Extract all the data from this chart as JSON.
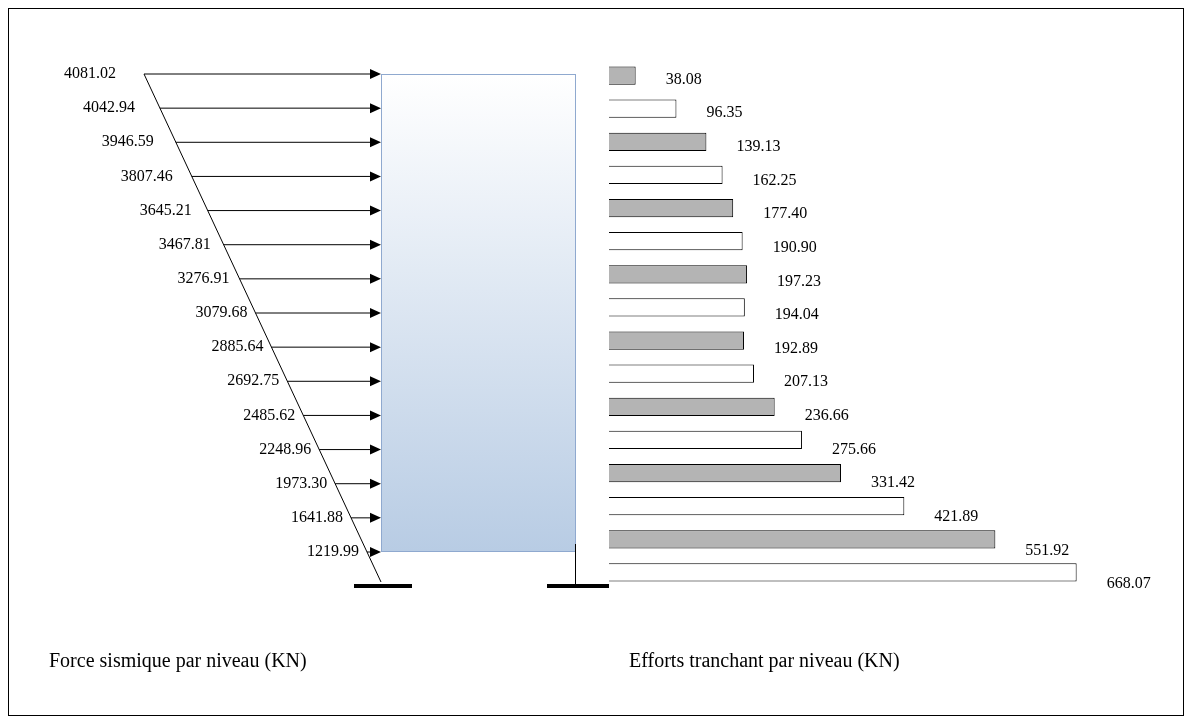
{
  "chart_data": [
    {
      "type": "other",
      "xlabel": "Force sismique par niveau (KN)",
      "values": [
        4081.02,
        4042.94,
        3946.59,
        3807.46,
        3645.21,
        3467.81,
        3276.91,
        3079.68,
        2885.64,
        2692.75,
        2485.62,
        2248.96,
        1973.3,
        1641.88,
        1219.99
      ],
      "value_labels": [
        "4081.02",
        "4042.94",
        "3946.59",
        "3807.46",
        "3645.21",
        "3467.81",
        "3276.91",
        "3079.68",
        "2885.64",
        "2692.75",
        "2485.62",
        "2248.96",
        "1973.30",
        "1641.88",
        "1219.99"
      ]
    },
    {
      "type": "bar",
      "orientation": "horizontal",
      "xlabel": "Efforts tranchant par niveau (KN)",
      "categories": [
        null,
        null,
        null,
        null,
        null,
        null,
        null,
        null,
        null,
        null,
        null,
        null,
        null,
        null,
        null,
        null
      ],
      "values": [
        38.08,
        96.35,
        139.13,
        162.25,
        177.4,
        190.9,
        197.23,
        194.04,
        192.89,
        207.13,
        236.66,
        275.66,
        331.42,
        421.89,
        551.92,
        668.07
      ],
      "value_labels": [
        "38.08",
        "96.35",
        "139.13",
        "162.25",
        "177.40",
        "190.90",
        "197.23",
        "194.04",
        "192.89",
        "207.13",
        "236.66",
        "275.66",
        "331.42",
        "421.89",
        "551.92",
        "668.07"
      ],
      "colors": [
        "#b4b4b4",
        "#ffffff",
        "#b4b4b4",
        "#ffffff",
        "#b4b4b4",
        "#ffffff",
        "#b4b4b4",
        "#ffffff",
        "#b4b4b4",
        "#ffffff",
        "#b4b4b4",
        "#ffffff",
        "#b4b4b4",
        "#ffffff",
        "#b4b4b4",
        "#ffffff"
      ]
    }
  ]
}
